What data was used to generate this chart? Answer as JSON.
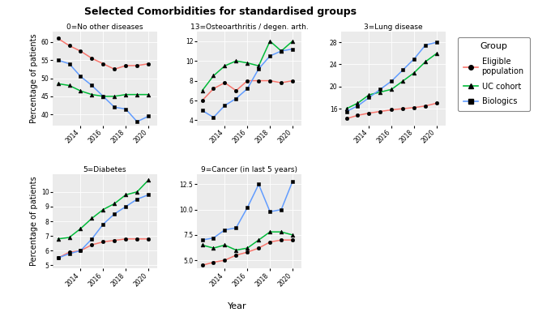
{
  "title": "Selected Comorbidities for standardised groups",
  "ylabel": "Percentage of patients",
  "xlabel": "Year",
  "years": [
    2012,
    2013,
    2014,
    2015,
    2016,
    2017,
    2018,
    2019,
    2020
  ],
  "colors": {
    "eligible": "#F8766D",
    "uc": "#00BA38",
    "biologics": "#619CFF"
  },
  "panels": [
    {
      "title": "0=No other diseases",
      "row": 0,
      "col": 0,
      "ylim": [
        37,
        63
      ],
      "yticks": [
        40,
        45,
        50,
        55,
        60
      ],
      "eligible": [
        61.0,
        59.0,
        57.5,
        55.5,
        54.0,
        52.5,
        53.5,
        53.5,
        54.0
      ],
      "uc": [
        48.5,
        48.0,
        46.5,
        45.5,
        45.0,
        45.0,
        45.5,
        45.5,
        45.5
      ],
      "biologics": [
        55.0,
        54.0,
        50.5,
        48.0,
        45.0,
        42.0,
        41.5,
        38.0,
        39.5
      ]
    },
    {
      "title": "13=Osteoarthritis / degen. arth.",
      "row": 0,
      "col": 1,
      "ylim": [
        3.5,
        13.0
      ],
      "yticks": [
        4,
        6,
        8,
        10,
        12
      ],
      "eligible": [
        6.0,
        7.2,
        7.8,
        7.0,
        8.0,
        8.0,
        8.0,
        7.8,
        8.0
      ],
      "uc": [
        7.0,
        8.5,
        9.5,
        10.0,
        9.8,
        9.5,
        12.0,
        11.0,
        12.0
      ],
      "biologics": [
        5.0,
        4.3,
        5.5,
        6.2,
        7.2,
        9.2,
        10.5,
        11.0,
        11.2
      ]
    },
    {
      "title": "3=Lung disease",
      "row": 0,
      "col": 2,
      "ylim": [
        13,
        30
      ],
      "yticks": [
        16,
        20,
        24,
        28
      ],
      "eligible": [
        14.2,
        14.8,
        15.2,
        15.5,
        15.8,
        16.0,
        16.2,
        16.5,
        17.0
      ],
      "uc": [
        16.0,
        17.0,
        18.5,
        19.0,
        19.5,
        21.0,
        22.5,
        24.5,
        26.0
      ],
      "biologics": [
        15.5,
        16.5,
        18.0,
        19.5,
        21.0,
        23.0,
        25.0,
        27.5,
        28.0
      ]
    },
    {
      "title": "5=Diabetes",
      "row": 1,
      "col": 0,
      "ylim": [
        4.8,
        11.2
      ],
      "yticks": [
        5,
        6,
        7,
        8,
        9,
        10
      ],
      "eligible": [
        5.5,
        5.9,
        6.0,
        6.4,
        6.6,
        6.7,
        6.8,
        6.8,
        6.8
      ],
      "uc": [
        6.8,
        6.9,
        7.5,
        8.2,
        8.8,
        9.2,
        9.8,
        10.0,
        10.8
      ],
      "biologics": [
        5.5,
        5.8,
        6.0,
        6.8,
        7.8,
        8.5,
        9.0,
        9.5,
        9.8
      ]
    },
    {
      "title": "9=Cancer (in last 5 years)",
      "row": 1,
      "col": 1,
      "ylim": [
        4.2,
        13.5
      ],
      "yticks": [
        5.0,
        7.5,
        10.0,
        12.5
      ],
      "eligible": [
        4.5,
        4.8,
        5.0,
        5.5,
        5.8,
        6.2,
        6.8,
        7.0,
        7.0
      ],
      "uc": [
        6.5,
        6.2,
        6.5,
        6.0,
        6.2,
        7.0,
        7.8,
        7.8,
        7.5
      ],
      "biologics": [
        7.0,
        7.2,
        8.0,
        8.2,
        10.2,
        12.5,
        9.8,
        10.0,
        12.8
      ]
    }
  ],
  "background_color": "#EBEBEB",
  "title_fontsize": 9,
  "panel_title_fontsize": 6.5,
  "tick_fontsize": 5.5,
  "ylabel_fontsize": 7,
  "xlabel_fontsize": 8,
  "legend_title_fontsize": 8,
  "legend_fontsize": 7
}
